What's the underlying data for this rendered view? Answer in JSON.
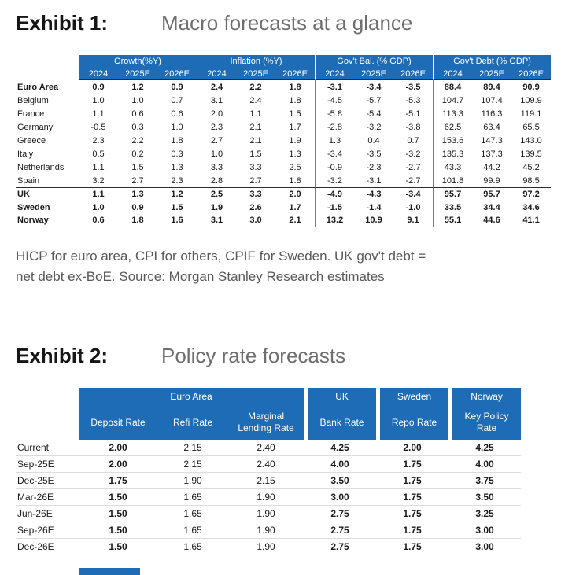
{
  "colors": {
    "header_blue": "#1F6CB6",
    "title_gray": "#6E6E6E",
    "footnote_gray": "#595959",
    "rule_dark": "#2B2B2B",
    "rule_light": "#DDDDDD"
  },
  "exhibit1": {
    "label": "Exhibit 1:",
    "title": "Macro forecasts at a glance",
    "table": {
      "groups": [
        "Growth(%Y)",
        "Inflation (%Y)",
        "Gov't Bal. (% GDP)",
        "Gov't Debt (% GDP)"
      ],
      "year_headers": [
        "2024",
        "2025E",
        "2026E"
      ],
      "rows": [
        {
          "label": "Euro Area",
          "bold": true,
          "values": [
            "0.9",
            "1.2",
            "0.9",
            "2.4",
            "2.2",
            "1.8",
            "-3.1",
            "-3.4",
            "-3.5",
            "88.4",
            "89.4",
            "90.9"
          ]
        },
        {
          "label": "Belgium",
          "bold": false,
          "values": [
            "1.0",
            "1.0",
            "0.7",
            "3.1",
            "2.4",
            "1.8",
            "-4.5",
            "-5.7",
            "-5.3",
            "104.7",
            "107.4",
            "109.9"
          ]
        },
        {
          "label": "France",
          "bold": false,
          "values": [
            "1.1",
            "0.6",
            "0.6",
            "2.0",
            "1.1",
            "1.5",
            "-5.8",
            "-5.4",
            "-5.1",
            "113.3",
            "116.3",
            "119.1"
          ]
        },
        {
          "label": "Germany",
          "bold": false,
          "values": [
            "-0.5",
            "0.3",
            "1.0",
            "2.3",
            "2.1",
            "1.7",
            "-2.8",
            "-3.2",
            "-3.8",
            "62.5",
            "63.4",
            "65.5"
          ]
        },
        {
          "label": "Greece",
          "bold": false,
          "values": [
            "2.3",
            "2.2",
            "1.8",
            "2.7",
            "2.1",
            "1.9",
            "1.3",
            "0.4",
            "0.7",
            "153.6",
            "147.3",
            "143.0"
          ]
        },
        {
          "label": "Italy",
          "bold": false,
          "values": [
            "0.5",
            "0.2",
            "0.3",
            "1.0",
            "1.5",
            "1.3",
            "-3.4",
            "-3.5",
            "-3.2",
            "135.3",
            "137.3",
            "139.5"
          ]
        },
        {
          "label": "Netherlands",
          "bold": false,
          "values": [
            "1.1",
            "1.5",
            "1.3",
            "3.3",
            "3.3",
            "2.5",
            "-0.9",
            "-2.3",
            "-2.7",
            "43.3",
            "44.2",
            "45.2"
          ]
        },
        {
          "label": "Spain",
          "bold": false,
          "values": [
            "3.2",
            "2.7",
            "2.3",
            "2.8",
            "2.7",
            "1.8",
            "-3.2",
            "-3.1",
            "-2.7",
            "101.8",
            "99.9",
            "98.5"
          ]
        },
        {
          "label": "UK",
          "bold": true,
          "sep_above": true,
          "values": [
            "1.1",
            "1.3",
            "1.2",
            "2.5",
            "3.3",
            "2.0",
            "-4.9",
            "-4.3",
            "-3.4",
            "95.7",
            "95.7",
            "97.2"
          ]
        },
        {
          "label": "Sweden",
          "bold": true,
          "values": [
            "1.0",
            "0.9",
            "1.5",
            "1.9",
            "2.6",
            "1.7",
            "-1.5",
            "-1.4",
            "-1.0",
            "33.5",
            "34.4",
            "34.6"
          ]
        },
        {
          "label": "Norway",
          "bold": true,
          "values": [
            "0.6",
            "1.8",
            "1.6",
            "3.1",
            "3.0",
            "2.1",
            "13.2",
            "10.9",
            "9.1",
            "55.1",
            "44.6",
            "41.1"
          ]
        }
      ]
    },
    "footnote_lines": [
      "HICP for euro area, CPI for others, CPIF for Sweden. UK gov't debt =",
      "net debt ex-BoE. Source: Morgan Stanley Research estimates"
    ]
  },
  "exhibit2": {
    "label": "Exhibit 2:",
    "title": "Policy rate forecasts",
    "table": {
      "groups": [
        {
          "label": "Euro Area",
          "cols": [
            "Deposit Rate",
            "Refi Rate",
            "Marginal Lending Rate"
          ]
        },
        {
          "label": "UK",
          "cols": [
            "Bank Rate"
          ]
        },
        {
          "label": "Sweden",
          "cols": [
            "Repo Rate"
          ]
        },
        {
          "label": "Norway",
          "cols": [
            "Key Policy Rate"
          ]
        }
      ],
      "bold_columns": [
        0,
        3,
        4,
        5
      ],
      "rows": [
        {
          "label": "Current",
          "values": [
            "2.00",
            "2.15",
            "2.40",
            "4.25",
            "2.00",
            "4.25"
          ]
        },
        {
          "label": "Sep-25E",
          "values": [
            "2.00",
            "2.15",
            "2.40",
            "4.00",
            "1.75",
            "4.00"
          ]
        },
        {
          "label": "Dec-25E",
          "values": [
            "1.75",
            "1.90",
            "2.15",
            "3.50",
            "1.75",
            "3.75"
          ]
        },
        {
          "label": "Mar-26E",
          "values": [
            "1.50",
            "1.65",
            "1.90",
            "3.00",
            "1.75",
            "3.50"
          ]
        },
        {
          "label": "Jun-26E",
          "values": [
            "1.50",
            "1.65",
            "1.90",
            "2.75",
            "1.75",
            "3.25"
          ]
        },
        {
          "label": "Sep-26E",
          "values": [
            "1.50",
            "1.65",
            "1.90",
            "2.75",
            "1.75",
            "3.00"
          ]
        },
        {
          "label": "Dec-26E",
          "values": [
            "1.50",
            "1.65",
            "1.90",
            "2.75",
            "1.75",
            "3.00"
          ]
        }
      ]
    }
  }
}
